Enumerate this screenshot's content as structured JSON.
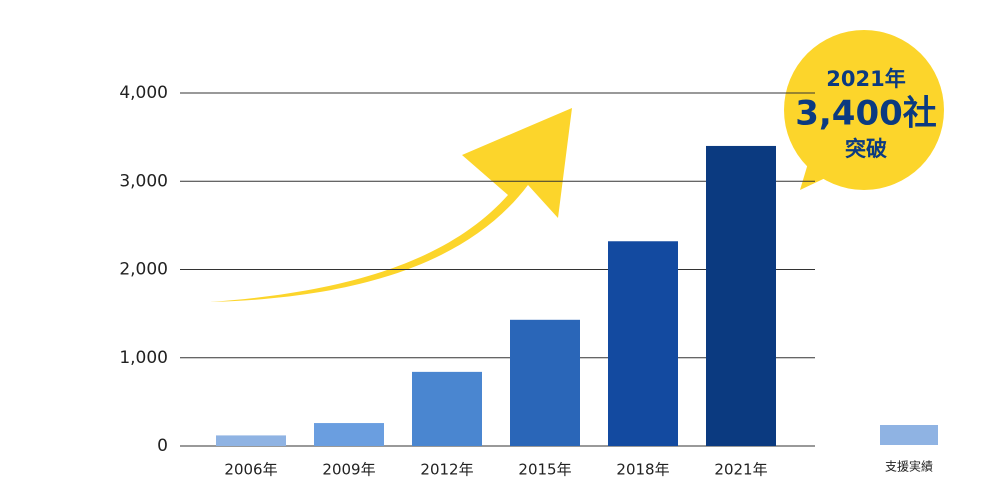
{
  "chart_data": {
    "type": "bar",
    "categories": [
      "2006年",
      "2009年",
      "2012年",
      "2015年",
      "2018年",
      "2021年"
    ],
    "series": [
      {
        "name": "支援実績",
        "color": "#8fb3e3",
        "values": [
          120,
          260,
          840,
          1430,
          2320,
          3400
        ]
      }
    ],
    "colors": [
      "#8fb3e3",
      "#6a9ee0",
      "#4a86d0",
      "#2a66b8",
      "#134aa0",
      "#0b3a80"
    ],
    "ylim": [
      0,
      4000
    ],
    "yticks": [
      0,
      {
        "value": 1000,
        "label": "1,000"
      },
      {
        "value": 2000,
        "label": "2,000"
      },
      {
        "value": 3000,
        "label": "3,000"
      },
      {
        "value": 4000,
        "label": "4,000"
      }
    ],
    "grid": true,
    "annotations": [
      "2021年",
      "3,400社",
      "突破"
    ]
  }
}
